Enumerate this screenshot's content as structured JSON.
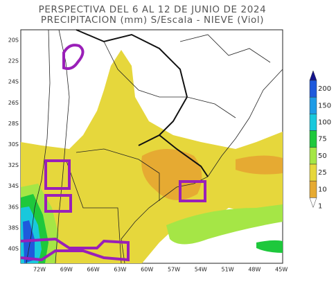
{
  "title": [
    "PERSPECTIVA DEL 6 AL 12 DE JUNIO DE 2024",
    "PRECIPITACION (mm) S/Escala - NIEVE (Viol)"
  ],
  "lat_labels": [
    "20S",
    "22S",
    "24S",
    "26S",
    "28S",
    "30S",
    "32S",
    "34S",
    "36S",
    "38S",
    "40S"
  ],
  "lon_labels": [
    "72W",
    "69W",
    "66W",
    "63W",
    "60W",
    "57W",
    "54W",
    "51W",
    "48W",
    "45W"
  ],
  "legend": {
    "levels": [
      200,
      150,
      100,
      75,
      50,
      25,
      10,
      1
    ],
    "colors": [
      "#14148c",
      "#1e5adc",
      "#1e9be6",
      "#19c8dc",
      "#1ec83c",
      "#a5e646",
      "#e6d73c",
      "#e6aa32",
      "#ffffff"
    ]
  }
}
